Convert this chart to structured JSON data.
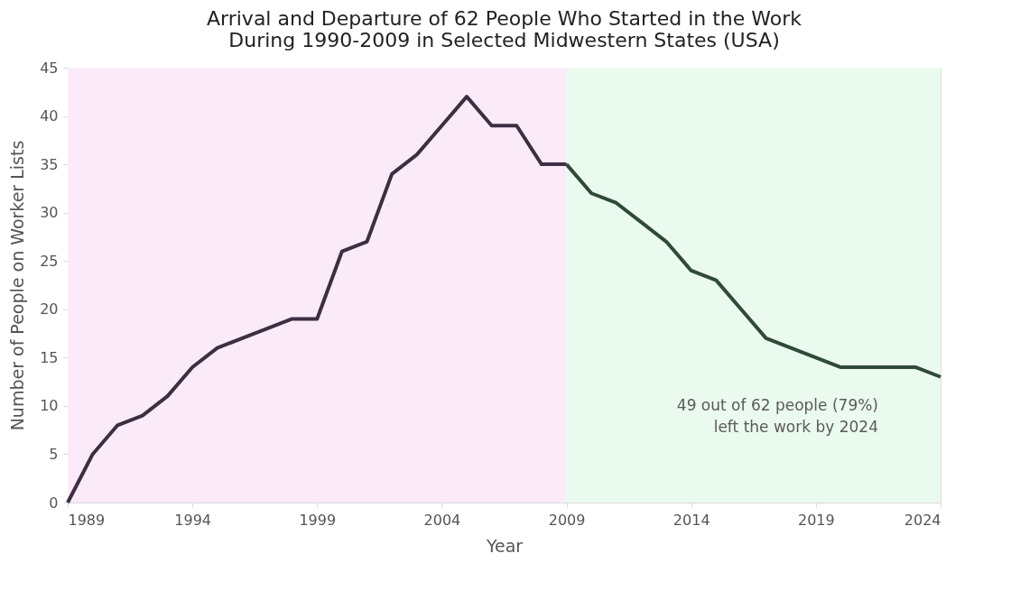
{
  "chart_data": {
    "type": "line",
    "title": [
      "Arrival and Departure of 62 People Who Started in the Work",
      "During 1990-2009 in Selected Midwestern States (USA)"
    ],
    "xlabel": "Year",
    "ylabel": "Number of People on Worker Lists",
    "series": [
      {
        "color": "#3f2e42",
        "x": [
          1989,
          1990,
          1991,
          1992,
          1993,
          1994,
          1995,
          1996,
          1997,
          1998,
          1999,
          2000,
          2001,
          2002,
          2003,
          2004,
          2005,
          2006,
          2007,
          2008,
          2009
        ],
        "values": [
          0,
          5,
          8,
          9,
          11,
          14,
          16,
          17,
          18,
          19,
          19,
          26,
          27,
          34,
          36,
          39,
          42,
          39,
          39,
          35,
          35
        ]
      },
      {
        "color": "#2f4a38",
        "x": [
          2009,
          2010,
          2011,
          2012,
          2013,
          2014,
          2015,
          2016,
          2017,
          2018,
          2019,
          2020,
          2021,
          2022,
          2023,
          2024
        ],
        "values": [
          35,
          32,
          31,
          29,
          27,
          24,
          23,
          20,
          17,
          16,
          15,
          14,
          14,
          14,
          14,
          13
        ]
      }
    ],
    "xlim": [
      1989,
      2024
    ],
    "xticks": [
      1989,
      1994,
      1999,
      2004,
      2009,
      2014,
      2019,
      2024
    ],
    "ylim": [
      0,
      45
    ],
    "yticks": [
      0,
      5,
      10,
      15,
      20,
      25,
      30,
      35,
      40,
      45
    ],
    "bands": [
      {
        "axis": "x",
        "from": 1989,
        "to": 2009,
        "color": "#fbebf9"
      },
      {
        "axis": "x",
        "from": 2009,
        "to": 2024,
        "color": "#ebfaef"
      }
    ],
    "annotations": [
      "49 out of 62 people (79%)\nleft the work by 2024"
    ],
    "grid": false,
    "legend": false,
    "marker": "none",
    "line_style": "solid"
  }
}
